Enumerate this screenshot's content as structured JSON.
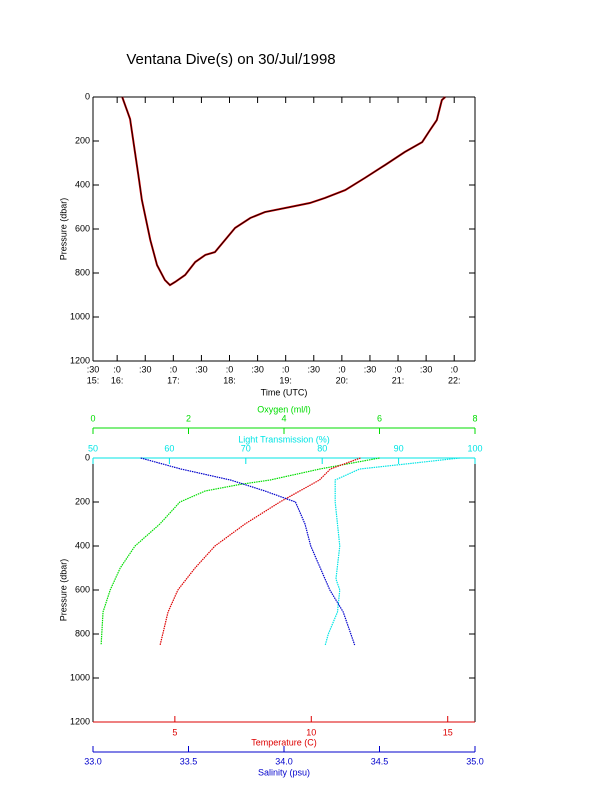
{
  "chart_data": [
    {
      "type": "line",
      "title": "Ventana Dive(s) on 30/Jul/1998",
      "xlabel": "Time (UTC)",
      "ylabel": "Pressure (dbar)",
      "xlim": [
        15.57,
        22.37
      ],
      "xticks": [
        {
          "value": 15.5,
          "label": ":30",
          "sublabel": "15:"
        },
        {
          "value": 16,
          "label": ":0",
          "sublabel": "16:"
        },
        {
          "value": 16.5,
          "label": ":30"
        },
        {
          "value": 17,
          "label": ":0",
          "sublabel": "17:"
        },
        {
          "value": 17.5,
          "label": ":30"
        },
        {
          "value": 18,
          "label": ":0",
          "sublabel": "18:"
        },
        {
          "value": 18.5,
          "label": ":30"
        },
        {
          "value": 19,
          "label": ":0",
          "sublabel": "19:"
        },
        {
          "value": 19.5,
          "label": ":30"
        },
        {
          "value": 20,
          "label": ":0",
          "sublabel": "20:"
        },
        {
          "value": 20.5,
          "label": ":30"
        },
        {
          "value": 21,
          "label": ":0",
          "sublabel": "21:"
        },
        {
          "value": 21.5,
          "label": ":30"
        },
        {
          "value": 22,
          "label": ":0",
          "sublabel": "22:"
        }
      ],
      "ylim": [
        0,
        1200
      ],
      "yticks": [
        0,
        200,
        400,
        600,
        800,
        1000,
        1200
      ],
      "y_inverted": true,
      "x": [
        16.09,
        16.23,
        16.39,
        16.44,
        16.59,
        16.71,
        16.85,
        16.94,
        17.03,
        17.21,
        17.39,
        17.57,
        17.74,
        17.92,
        18.1,
        18.37,
        18.63,
        19.08,
        19.43,
        19.7,
        20.06,
        20.41,
        20.77,
        21.12,
        21.43,
        21.57,
        21.69,
        21.78,
        21.84
      ],
      "values": [
        0,
        100,
        377,
        468,
        650,
        764,
        832,
        855,
        841,
        809,
        750,
        718,
        705,
        650,
        595,
        550,
        523,
        500,
        482,
        459,
        423,
        368,
        309,
        250,
        205,
        150,
        105,
        14,
        0
      ],
      "color": "#000000",
      "color2": "#cc0000"
    },
    {
      "type": "profile",
      "ylabel": "Pressure (dbar)",
      "ylim": [
        0,
        1200
      ],
      "yticks": [
        0,
        200,
        400,
        600,
        800,
        1000,
        1200
      ],
      "y_inverted": true,
      "axes": [
        {
          "label": "Oxygen (ml/l)",
          "color": "#00dd00",
          "lim": [
            0,
            8
          ],
          "ticks": [
            0,
            2,
            4,
            6,
            8
          ]
        },
        {
          "label": "Light Transmission (%)",
          "color": "#00e5e5",
          "lim": [
            50,
            100
          ],
          "ticks": [
            50,
            60,
            70,
            80,
            90,
            100
          ]
        },
        {
          "label": "Temperature (C)",
          "color": "#dd0000",
          "lim": [
            2,
            16
          ],
          "ticks": [
            5,
            10,
            15
          ]
        },
        {
          "label": "Salinity (psu)",
          "color": "#0000cc",
          "lim": [
            33,
            35
          ],
          "ticks": [
            {
              "value": 33,
              "label": "33.0"
            },
            33.5,
            {
              "value": 34,
              "label": "34.0"
            },
            34.5,
            {
              "value": 35,
              "label": "35.0"
            }
          ]
        }
      ],
      "series": [
        {
          "axis": 0,
          "color": "#00dd00",
          "pressure": [
            0,
            50,
            100,
            120,
            150,
            200,
            300,
            400,
            500,
            600,
            700,
            850
          ],
          "values": [
            6.0,
            4.75,
            3.71,
            3.08,
            2.35,
            1.82,
            1.4,
            0.88,
            0.57,
            0.36,
            0.21,
            0.17
          ]
        },
        {
          "axis": 1,
          "color": "#00e5e5",
          "pressure": [
            0,
            20,
            50,
            100,
            200,
            400,
            550,
            600,
            700,
            800,
            850
          ],
          "values": [
            98,
            92.8,
            84.9,
            81.7,
            81.7,
            82.3,
            81.8,
            82.3,
            82.0,
            80.8,
            80.4
          ]
        },
        {
          "axis": 2,
          "color": "#dd0000",
          "pressure": [
            0,
            50,
            100,
            200,
            300,
            400,
            500,
            600,
            700,
            850
          ],
          "values": [
            11.8,
            10.7,
            10.3,
            8.85,
            7.57,
            6.47,
            5.74,
            5.11,
            4.75,
            4.46
          ]
        },
        {
          "axis": 3,
          "color": "#0000cc",
          "pressure": [
            0,
            50,
            100,
            150,
            200,
            300,
            400,
            500,
            600,
            700,
            850
          ],
          "values": [
            33.25,
            33.46,
            33.72,
            33.9,
            34.06,
            34.11,
            34.14,
            34.19,
            34.24,
            34.31,
            34.37
          ]
        }
      ]
    }
  ]
}
